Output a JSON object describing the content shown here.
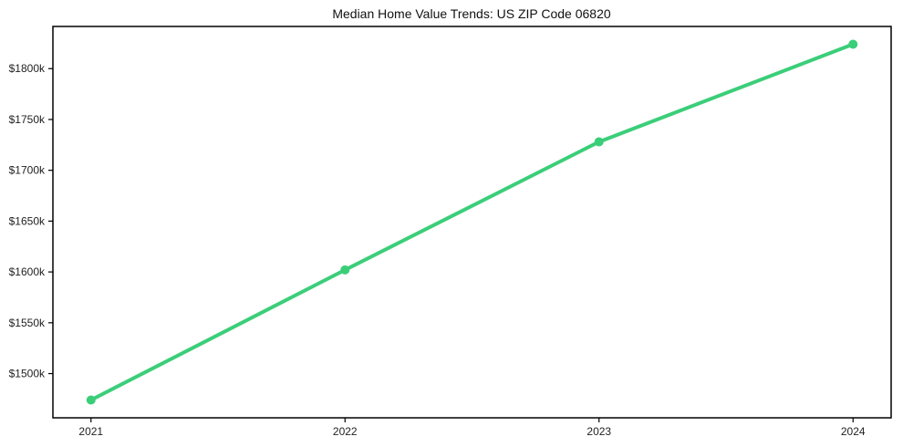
{
  "chart_data": {
    "type": "line",
    "title": "Median Home Value Trends: US ZIP Code 06820",
    "x": [
      2021,
      2022,
      2023,
      2024
    ],
    "x_tick_labels": [
      "2021",
      "2022",
      "2023",
      "2024"
    ],
    "values": [
      1474,
      1602,
      1728,
      1824
    ],
    "y_ticks": [
      {
        "value": 1500,
        "label": "$1500k"
      },
      {
        "value": 1550,
        "label": "$1550k"
      },
      {
        "value": 1600,
        "label": "$1600k"
      },
      {
        "value": 1650,
        "label": "$1650k"
      },
      {
        "value": 1700,
        "label": "$1700k"
      },
      {
        "value": 1750,
        "label": "$1750k"
      },
      {
        "value": 1800,
        "label": "$1800k"
      }
    ],
    "xlabel": "",
    "ylabel": "",
    "xlim": [
      2020.85,
      2024.15
    ],
    "ylim": [
      1456.5,
      1841.5
    ],
    "grid": false,
    "legend": null,
    "colors": {
      "line": "#3bce79",
      "marker": "#3bce79",
      "axis": "#000000",
      "tick_text": "#1f1f1f",
      "title_text": "#111111",
      "background": "#ffffff"
    }
  }
}
